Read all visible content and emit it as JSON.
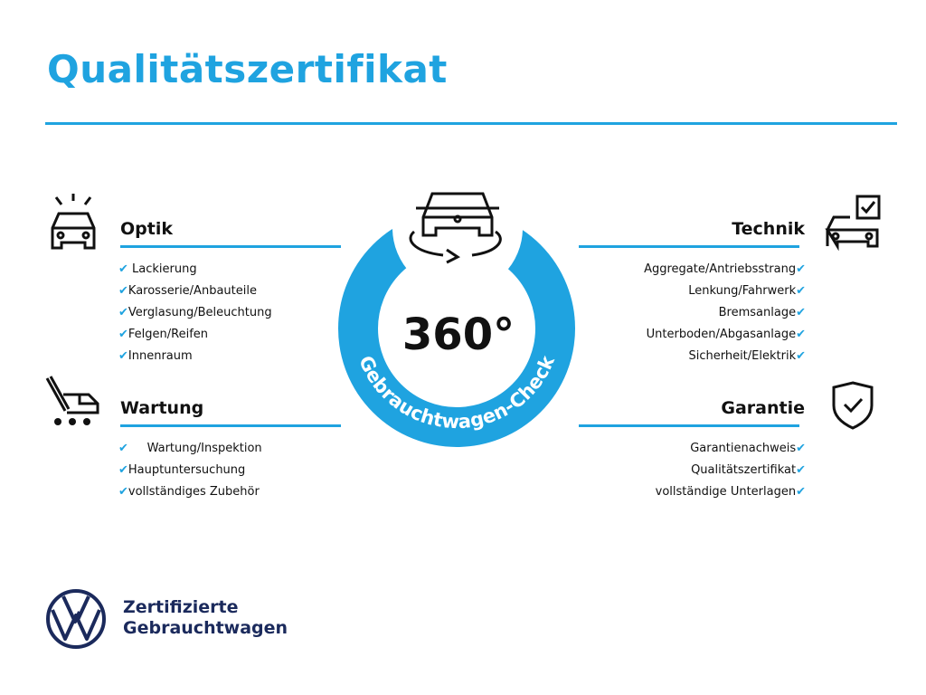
{
  "title": "Qualitätszertifikat",
  "badge": {
    "number": "360°",
    "ring_text": "Gebrauchtwagen-Check"
  },
  "colors": {
    "accent": "#1fa3e0",
    "brand": "#1b2a5c"
  },
  "check_symbol": "✔",
  "sections": {
    "optik": {
      "title": "Optik",
      "icon": "car-lights-icon",
      "items": [
        "Lackierung",
        "Karosserie/Anbauteile",
        "Verglasung/Beleuchtung",
        "Felgen/Reifen",
        "Innenraum"
      ]
    },
    "wartung": {
      "title": "Wartung",
      "icon": "service-cart-icon",
      "items": [
        "Wartung/Inspektion",
        "Hauptuntersuchung",
        "vollständiges Zubehör"
      ]
    },
    "technik": {
      "title": "Technik",
      "icon": "car-checkbox-icon",
      "items": [
        "Aggregate/Antriebsstrang",
        "Lenkung/Fahrwerk",
        "Bremsanlage",
        "Unterboden/Abgasanlage",
        "Sicherheit/Elektrik"
      ]
    },
    "garantie": {
      "title": "Garantie",
      "icon": "shield-check-icon",
      "items": [
        "Garantienachweis",
        "Qualitätszertifikat",
        "vollständige Unterlagen"
      ]
    }
  },
  "footer": {
    "line1": "Zertifizierte",
    "line2": "Gebrauchtwagen",
    "logo": "vw-logo"
  }
}
